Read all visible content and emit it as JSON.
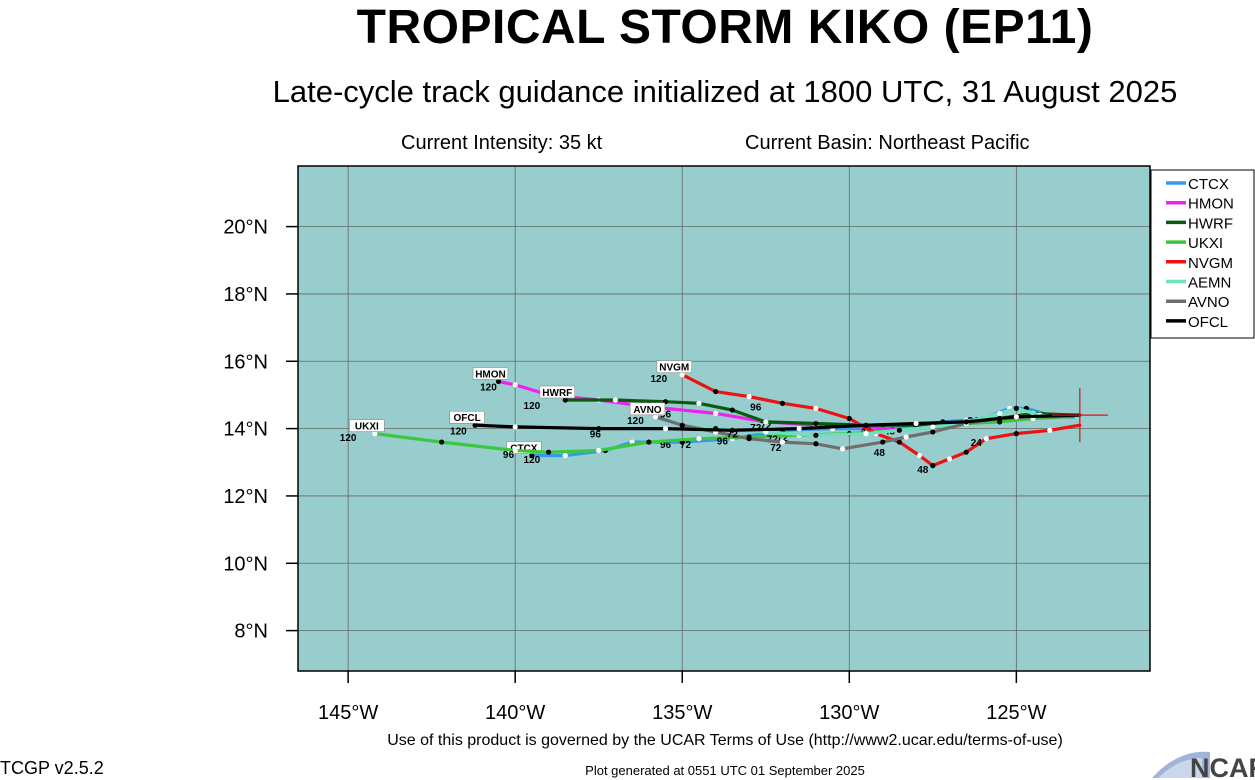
{
  "header": {
    "title": "TROPICAL STORM KIKO (EP11)",
    "subtitle": "Late-cycle track guidance initialized at 1800 UTC, 31 August 2025",
    "intensity": "Current Intensity: 35 kt",
    "basin": "Current Basin: Northeast Pacific"
  },
  "footer": {
    "terms": "Use of this product is governed by the UCAR Terms of Use (http://www2.ucar.edu/terms-of-use)",
    "version": "TCGP v2.5.2",
    "generated": "Plot generated at 0551 UTC   01 September 2025",
    "logo_text": "NCAR"
  },
  "colors": {
    "ocean": "#97cecd",
    "grid": "#666666"
  },
  "chart_data": {
    "type": "line",
    "xlim": [
      -146.5,
      -121.0
    ],
    "ylim": [
      6.8,
      21.8
    ],
    "x_ticks": [
      -145,
      -140,
      -135,
      -130,
      -125
    ],
    "x_tick_labels": [
      "145°W",
      "140°W",
      "135°W",
      "130°W",
      "125°W"
    ],
    "y_ticks": [
      8,
      10,
      12,
      14,
      16,
      18,
      20
    ],
    "y_tick_labels": [
      "8°N",
      "10°N",
      "12°N",
      "14°N",
      "16°N",
      "18°N",
      "20°N"
    ],
    "grid": true,
    "legend_position": "right",
    "current_position": {
      "lon": -123.1,
      "lat": 14.4
    },
    "series": [
      {
        "name": "CTCX",
        "color": "#3a98e8",
        "end_label": "CTCX",
        "points": [
          [
            -123.3,
            14.3
          ],
          [
            -124.0,
            14.4
          ],
          [
            -124.7,
            14.6
          ],
          [
            -125.2,
            14.6
          ],
          [
            -126.0,
            14.3
          ],
          [
            -126.5,
            14.25
          ],
          [
            -127.2,
            14.2
          ],
          [
            -128.0,
            14.1
          ],
          [
            -129.0,
            14.0
          ],
          [
            -130.5,
            14.0
          ],
          [
            -132.0,
            13.95
          ],
          [
            -133.5,
            13.7
          ],
          [
            -135.0,
            13.6
          ],
          [
            -136.5,
            13.6
          ],
          [
            -137.3,
            13.35
          ],
          [
            -138.5,
            13.2
          ],
          [
            -139.5,
            13.2
          ]
        ],
        "labels": [
          [
            "24",
            -126.3,
            14.25
          ],
          [
            "48",
            -128.8,
            13.95
          ],
          [
            "72",
            -132.0,
            13.75
          ],
          [
            "96",
            -135.5,
            13.55
          ],
          [
            "120",
            -139.5,
            13.1
          ]
        ]
      },
      {
        "name": "HMON",
        "color": "#ee22ee",
        "end_label": "HMON",
        "points": [
          [
            -123.3,
            14.35
          ],
          [
            -124.5,
            14.35
          ],
          [
            -125.5,
            14.3
          ],
          [
            -126.5,
            14.2
          ],
          [
            -127.5,
            14.05
          ],
          [
            -128.5,
            13.95
          ],
          [
            -129.5,
            14.05
          ],
          [
            -131.0,
            14.1
          ],
          [
            -132.5,
            14.2
          ],
          [
            -134.0,
            14.45
          ],
          [
            -136.0,
            14.65
          ],
          [
            -137.5,
            14.85
          ],
          [
            -139.0,
            15.0
          ],
          [
            -140.0,
            15.3
          ],
          [
            -140.5,
            15.4
          ]
        ],
        "labels": [
          [
            "48",
            -129.5,
            13.95
          ],
          [
            "72",
            -132.5,
            14.1
          ],
          [
            "96",
            -136.2,
            14.55
          ],
          [
            "120",
            -140.8,
            15.25
          ]
        ]
      },
      {
        "name": "HWRF",
        "color": "#0a5a0a",
        "end_label": "HWRF",
        "points": [
          [
            -123.3,
            14.4
          ],
          [
            -124.5,
            14.45
          ],
          [
            -125.5,
            14.3
          ],
          [
            -126.5,
            14.2
          ],
          [
            -128.0,
            14.1
          ],
          [
            -129.5,
            14.1
          ],
          [
            -131.0,
            14.15
          ],
          [
            -132.5,
            14.2
          ],
          [
            -133.5,
            14.55
          ],
          [
            -134.5,
            14.75
          ],
          [
            -135.5,
            14.8
          ],
          [
            -137.0,
            14.85
          ],
          [
            -138.5,
            14.85
          ]
        ],
        "labels": [
          [
            "72",
            -132.8,
            14.05
          ],
          [
            "96",
            -135.9,
            14.7
          ],
          [
            "120",
            -139.5,
            14.7
          ]
        ]
      },
      {
        "name": "UKXI",
        "color": "#3cc83c",
        "end_label": "UKXI",
        "points": [
          [
            -123.3,
            14.35
          ],
          [
            -124.5,
            14.3
          ],
          [
            -125.5,
            14.2
          ],
          [
            -126.5,
            14.15
          ],
          [
            -127.5,
            14.05
          ],
          [
            -128.5,
            13.95
          ],
          [
            -130.0,
            13.85
          ],
          [
            -131.5,
            13.8
          ],
          [
            -133.0,
            13.75
          ],
          [
            -134.5,
            13.7
          ],
          [
            -136.0,
            13.6
          ],
          [
            -137.5,
            13.35
          ],
          [
            -139.0,
            13.3
          ],
          [
            -140.0,
            13.35
          ],
          [
            -142.2,
            13.6
          ],
          [
            -144.2,
            13.85
          ]
        ],
        "labels": [
          [
            "72",
            -134.9,
            13.55
          ],
          [
            "96",
            -140.2,
            13.25
          ],
          [
            "120",
            -145.0,
            13.75
          ]
        ]
      },
      {
        "name": "NVGM",
        "color": "#ee1111",
        "end_label": "NVGM",
        "points": [
          [
            -123.1,
            14.1
          ],
          [
            -124.0,
            13.95
          ],
          [
            -125.0,
            13.85
          ],
          [
            -125.9,
            13.7
          ],
          [
            -126.5,
            13.3
          ],
          [
            -127.0,
            13.1
          ],
          [
            -127.5,
            12.9
          ],
          [
            -127.9,
            13.2
          ],
          [
            -128.5,
            13.6
          ],
          [
            -129.2,
            13.85
          ],
          [
            -130.0,
            14.3
          ],
          [
            -131.0,
            14.6
          ],
          [
            -132.0,
            14.75
          ],
          [
            -133.0,
            14.95
          ],
          [
            -134.0,
            15.1
          ],
          [
            -135.0,
            15.6
          ]
        ],
        "labels": [
          [
            "24",
            -126.2,
            13.6
          ],
          [
            "48",
            -127.8,
            12.8
          ],
          [
            "96",
            -132.8,
            14.65
          ],
          [
            "120",
            -135.7,
            15.5
          ]
        ]
      },
      {
        "name": "AEMN",
        "color": "#6ee0c0",
        "end_label": "",
        "points": [
          [
            -123.3,
            14.3
          ],
          [
            -124.3,
            14.4
          ],
          [
            -125.0,
            14.6
          ],
          [
            -125.5,
            14.45
          ],
          [
            -126.5,
            14.2
          ],
          [
            -127.5,
            14.05
          ],
          [
            -128.5,
            13.95
          ],
          [
            -129.5,
            13.85
          ],
          [
            -131.0,
            13.8
          ],
          [
            -132.5,
            13.9
          ],
          [
            -134.0,
            14.0
          ],
          [
            -135.0,
            14.1
          ]
        ],
        "labels": [
          [
            "72",
            -132.3,
            13.7
          ],
          [
            "96",
            -133.8,
            13.65
          ]
        ]
      },
      {
        "name": "AVNO",
        "color": "#6e6e6e",
        "end_label": "AVNO",
        "points": [
          [
            -123.3,
            14.35
          ],
          [
            -124.5,
            14.35
          ],
          [
            -125.5,
            14.3
          ],
          [
            -126.5,
            14.15
          ],
          [
            -127.5,
            13.9
          ],
          [
            -128.3,
            13.75
          ],
          [
            -129.0,
            13.6
          ],
          [
            -130.2,
            13.4
          ],
          [
            -131.0,
            13.55
          ],
          [
            -132.0,
            13.6
          ],
          [
            -133.0,
            13.7
          ],
          [
            -134.0,
            13.9
          ],
          [
            -135.0,
            14.1
          ],
          [
            -135.8,
            14.35
          ]
        ],
        "labels": [
          [
            "48",
            -129.1,
            13.3
          ],
          [
            "72",
            -132.2,
            13.45
          ],
          [
            "96",
            -135.5,
            14.45
          ],
          [
            "120",
            -136.4,
            14.25
          ]
        ]
      },
      {
        "name": "OFCL",
        "color": "#000000",
        "end_label": "OFCL",
        "points": [
          [
            -123.1,
            14.4
          ],
          [
            -125.0,
            14.35
          ],
          [
            -126.5,
            14.2
          ],
          [
            -128.0,
            14.15
          ],
          [
            -129.5,
            14.1
          ],
          [
            -131.5,
            14.0
          ],
          [
            -133.5,
            13.95
          ],
          [
            -135.5,
            14.0
          ],
          [
            -137.5,
            14.0
          ],
          [
            -140.0,
            14.05
          ],
          [
            -141.2,
            14.1
          ]
        ],
        "labels": [
          [
            "72",
            -133.5,
            13.85
          ],
          [
            "96",
            -137.6,
            13.85
          ],
          [
            "120",
            -141.7,
            13.95
          ]
        ]
      }
    ]
  }
}
